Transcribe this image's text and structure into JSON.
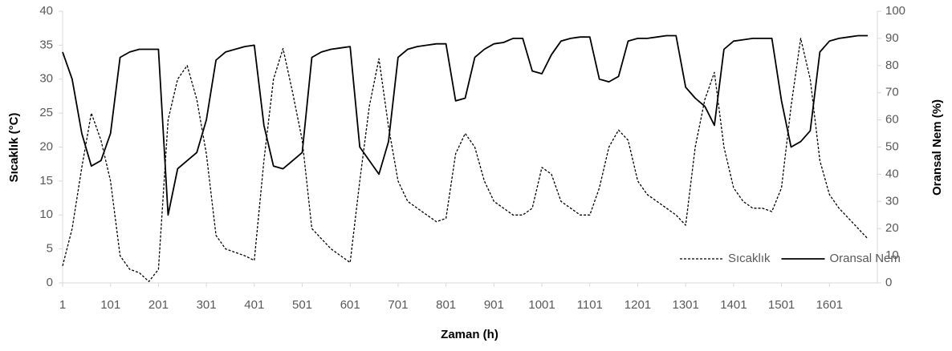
{
  "chart_data": {
    "type": "line",
    "xlabel": "Zaman (h)",
    "ylabel": "Sıcaklık (°C)",
    "y2label": "Oransal Nem (%)",
    "x": [
      1,
      21,
      41,
      61,
      81,
      101,
      121,
      141,
      161,
      181,
      201,
      221,
      241,
      261,
      281,
      301,
      321,
      341,
      361,
      381,
      401,
      421,
      441,
      461,
      481,
      501,
      521,
      541,
      561,
      581,
      601,
      621,
      641,
      661,
      681,
      701,
      721,
      741,
      761,
      781,
      801,
      821,
      841,
      861,
      881,
      901,
      921,
      941,
      961,
      981,
      1001,
      1021,
      1041,
      1061,
      1081,
      1101,
      1121,
      1141,
      1161,
      1181,
      1201,
      1221,
      1241,
      1261,
      1281,
      1301,
      1321,
      1341,
      1361,
      1381,
      1401,
      1421,
      1441,
      1461,
      1481,
      1501,
      1521,
      1541,
      1561,
      1581,
      1601,
      1621,
      1641,
      1661,
      1681
    ],
    "xlim": [
      1,
      1701
    ],
    "xticks": [
      1,
      101,
      201,
      301,
      401,
      501,
      601,
      701,
      801,
      901,
      1001,
      1101,
      1201,
      1301,
      1401,
      1501,
      1601
    ],
    "ylim": [
      0,
      40
    ],
    "yticks": [
      0,
      5,
      10,
      15,
      20,
      25,
      30,
      35,
      40
    ],
    "y2lim": [
      0,
      100
    ],
    "y2ticks": [
      0,
      10,
      20,
      30,
      40,
      50,
      60,
      70,
      80,
      90,
      100
    ],
    "legend": "lower right",
    "series": [
      {
        "name": "Sıcaklık",
        "color": "#000000",
        "dash": true,
        "values": [
          2.5,
          8,
          17,
          25,
          21,
          15,
          4,
          2,
          1.5,
          0.2,
          2,
          24,
          30,
          32,
          27,
          19,
          7,
          5,
          4.5,
          4,
          3.3,
          18,
          30,
          34.5,
          28,
          21,
          8,
          6.5,
          5,
          4,
          3,
          15,
          26,
          33,
          23,
          15,
          12,
          11,
          10,
          9,
          9.5,
          19,
          22,
          20,
          15,
          12,
          11,
          10,
          10,
          11,
          17,
          16,
          12,
          11,
          10,
          10,
          14,
          20,
          22.5,
          21,
          15,
          13,
          12,
          11,
          10,
          8.5,
          20,
          27,
          31,
          20,
          14,
          12,
          11,
          11,
          10.5,
          14,
          26,
          36,
          30,
          18,
          13,
          11,
          9.5,
          8,
          6.5
        ]
      },
      {
        "name": "Oransal Nem",
        "color": "#000000",
        "dash": false,
        "axis": "y2",
        "values": [
          85,
          75,
          55,
          43,
          45,
          55,
          83,
          85,
          86,
          86,
          86,
          25,
          42,
          45,
          48,
          60,
          82,
          85,
          86,
          87,
          87.5,
          58,
          43,
          42,
          45,
          48,
          83,
          85,
          86,
          86.5,
          87,
          50,
          45,
          40,
          52,
          83,
          86,
          87,
          87.5,
          88,
          88,
          67,
          68,
          83,
          86,
          88,
          88.5,
          90,
          90,
          78,
          77,
          84,
          89,
          90,
          90.5,
          90.5,
          75,
          74,
          76,
          89,
          90,
          90,
          90.5,
          91,
          91,
          72,
          68,
          65,
          58,
          86,
          89,
          89.5,
          90,
          90,
          90,
          67,
          50,
          52,
          56,
          85,
          89,
          90,
          90.5,
          91,
          91
        ]
      }
    ]
  }
}
